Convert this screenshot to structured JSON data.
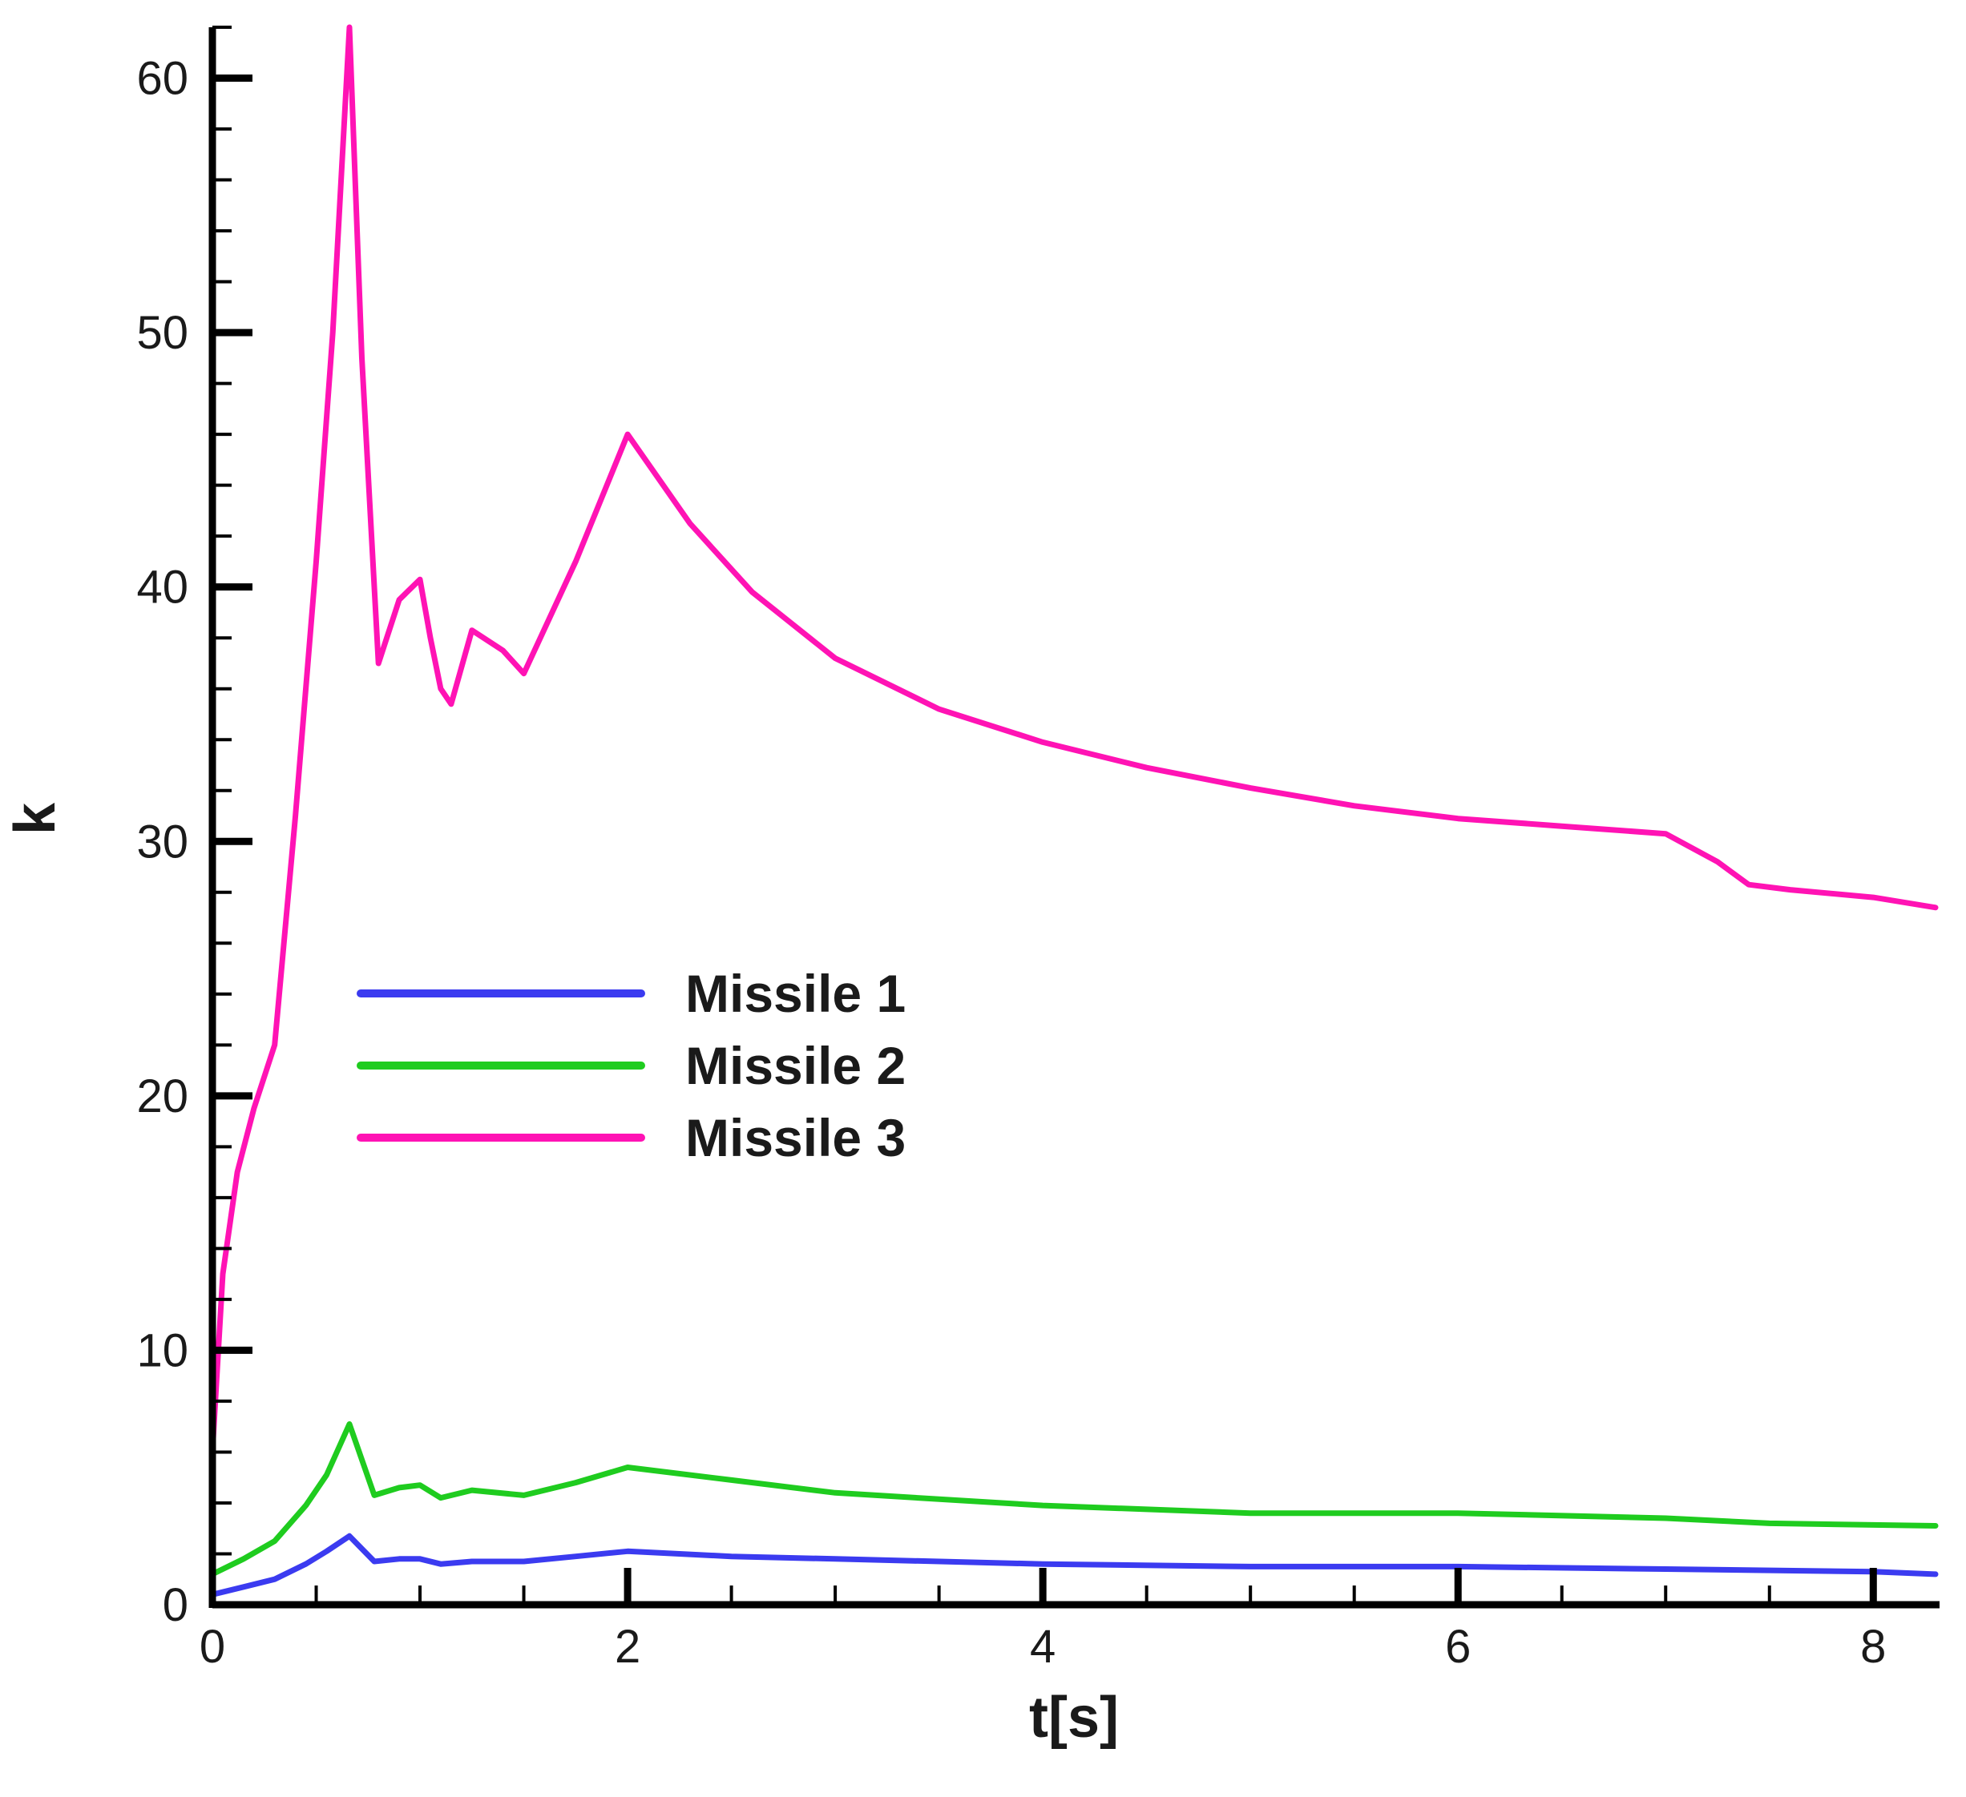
{
  "chart_data": {
    "type": "line",
    "title": "",
    "xlabel": "t[s]",
    "ylabel": "k",
    "xlim": [
      0,
      8.3
    ],
    "ylim": [
      0,
      62
    ],
    "xticks": [
      0,
      2,
      4,
      6,
      8
    ],
    "yticks": [
      0,
      10,
      20,
      30,
      40,
      50,
      60
    ],
    "x_minor_step": 0.5,
    "y_minor_step": 2,
    "grid": false,
    "legend_position": "middle-left",
    "series": [
      {
        "name": "Missile 1",
        "color": "#3b3bf0",
        "points": [
          [
            0,
            0.4
          ],
          [
            0.15,
            0.7
          ],
          [
            0.3,
            1.0
          ],
          [
            0.45,
            1.6
          ],
          [
            0.55,
            2.1
          ],
          [
            0.66,
            2.7
          ],
          [
            0.78,
            1.7
          ],
          [
            0.9,
            1.8
          ],
          [
            1.0,
            1.8
          ],
          [
            1.1,
            1.6
          ],
          [
            1.25,
            1.7
          ],
          [
            1.5,
            1.7
          ],
          [
            1.75,
            1.9
          ],
          [
            2.0,
            2.1
          ],
          [
            2.5,
            1.9
          ],
          [
            3.0,
            1.8
          ],
          [
            4.0,
            1.6
          ],
          [
            5.0,
            1.5
          ],
          [
            6.0,
            1.5
          ],
          [
            7.0,
            1.4
          ],
          [
            8.0,
            1.3
          ],
          [
            8.3,
            1.2
          ]
        ]
      },
      {
        "name": "Missile 2",
        "color": "#1fcc1f",
        "points": [
          [
            0,
            1.2
          ],
          [
            0.15,
            1.8
          ],
          [
            0.3,
            2.5
          ],
          [
            0.45,
            3.9
          ],
          [
            0.55,
            5.1
          ],
          [
            0.66,
            7.1
          ],
          [
            0.78,
            4.3
          ],
          [
            0.9,
            4.6
          ],
          [
            1.0,
            4.7
          ],
          [
            1.1,
            4.2
          ],
          [
            1.25,
            4.5
          ],
          [
            1.5,
            4.3
          ],
          [
            1.75,
            4.8
          ],
          [
            2.0,
            5.4
          ],
          [
            2.5,
            4.9
          ],
          [
            3.0,
            4.4
          ],
          [
            4.0,
            3.9
          ],
          [
            5.0,
            3.6
          ],
          [
            6.0,
            3.6
          ],
          [
            7.0,
            3.4
          ],
          [
            7.5,
            3.2
          ],
          [
            8.3,
            3.1
          ]
        ]
      },
      {
        "name": "Missile 3",
        "color": "#ff13b4",
        "points": [
          [
            0,
            6
          ],
          [
            0.05,
            13
          ],
          [
            0.12,
            17
          ],
          [
            0.2,
            19.5
          ],
          [
            0.3,
            22
          ],
          [
            0.4,
            31
          ],
          [
            0.5,
            41
          ],
          [
            0.58,
            50
          ],
          [
            0.66,
            62
          ],
          [
            0.72,
            49
          ],
          [
            0.78,
            40
          ],
          [
            0.8,
            37
          ],
          [
            0.9,
            39.5
          ],
          [
            1.0,
            40.3
          ],
          [
            1.05,
            38
          ],
          [
            1.1,
            36
          ],
          [
            1.15,
            35.4
          ],
          [
            1.25,
            38.3
          ],
          [
            1.4,
            37.5
          ],
          [
            1.5,
            36.6
          ],
          [
            1.75,
            41
          ],
          [
            2.0,
            46
          ],
          [
            2.3,
            42.5
          ],
          [
            2.6,
            39.8
          ],
          [
            3.0,
            37.2
          ],
          [
            3.5,
            35.2
          ],
          [
            4.0,
            33.9
          ],
          [
            4.5,
            32.9
          ],
          [
            5.0,
            32.1
          ],
          [
            5.5,
            31.4
          ],
          [
            6.0,
            30.9
          ],
          [
            6.5,
            30.6
          ],
          [
            7.0,
            30.3
          ],
          [
            7.25,
            29.2
          ],
          [
            7.4,
            28.3
          ],
          [
            7.6,
            28.1
          ],
          [
            8.0,
            27.8
          ],
          [
            8.3,
            27.4
          ]
        ]
      }
    ]
  }
}
